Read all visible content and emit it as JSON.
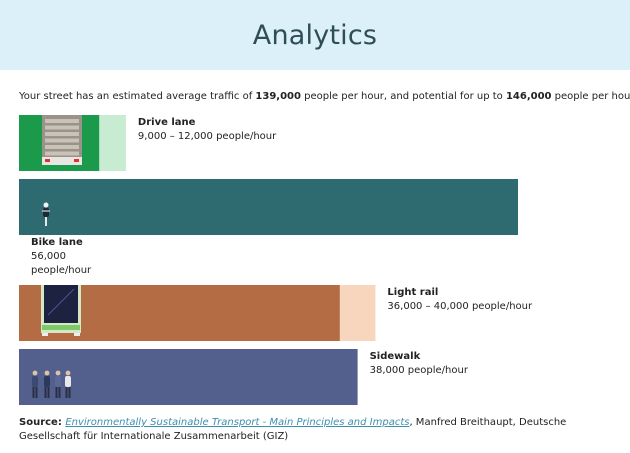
{
  "header": {
    "title": "Analytics"
  },
  "summary": {
    "prefix": "Your street has an estimated average traffic of ",
    "average": "139,000",
    "middle": " people per hour, and potential for up to ",
    "potential": "146,000",
    "suffix": " people per hour."
  },
  "chart_data": {
    "type": "bar",
    "orientation": "horizontal",
    "unit": "people/hour",
    "categories": [
      "Drive lane",
      "Bike lane",
      "Light rail",
      "Sidewalk"
    ],
    "series": [
      {
        "values": [
          9000,
          56000,
          36000,
          38000
        ]
      },
      {
        "values": [
          12000,
          56000,
          40000,
          38000
        ]
      }
    ],
    "range_labels": [
      "9,000 – 12,000 people/hour",
      "56,000\npeople/hour",
      "36,000 – 40,000 people/hour",
      "38,000 people/hour"
    ],
    "colors": {
      "Drive lane": [
        "#1a9a4a",
        "#c8ecd2"
      ],
      "Bike lane": [
        "#2e6b70",
        "#2e6b70"
      ],
      "Light rail": [
        "#b46c45",
        "#f8d6be"
      ],
      "Sidewalk": [
        "#535f8c",
        "#535f8c"
      ]
    },
    "icons": [
      "truck-icon",
      "cyclist-icon",
      "tram-icon",
      "pedestrians-icon"
    ]
  },
  "source": {
    "prefix": "Source: ",
    "link_text": "Environmentally Sustainable Transport - Main Principles and Impacts",
    "suffix": ", Manfred Breithaupt, Deutsche Gesellschaft für Internationale Zusammenarbeit (GIZ)"
  }
}
